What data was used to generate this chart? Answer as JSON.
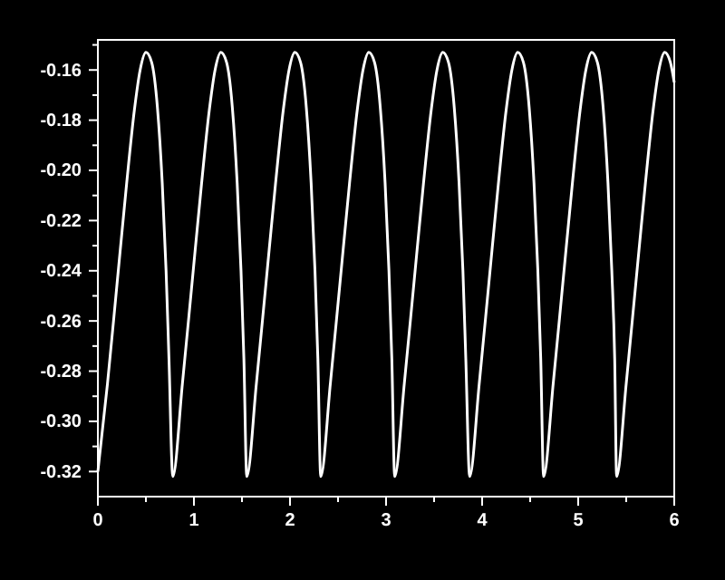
{
  "chart_data": {
    "type": "line",
    "x": [
      0,
      0.1,
      0.2,
      0.3,
      0.38,
      0.44,
      0.5,
      0.56,
      0.62,
      0.67,
      0.71,
      0.74,
      0.78,
      0.88,
      0.98,
      1.08,
      1.16,
      1.22,
      1.28,
      1.34,
      1.4,
      1.45,
      1.49,
      1.52,
      1.55,
      1.65,
      1.75,
      1.85,
      1.93,
      1.99,
      2.05,
      2.11,
      2.17,
      2.22,
      2.26,
      2.29,
      2.32,
      2.42,
      2.52,
      2.62,
      2.7,
      2.76,
      2.82,
      2.88,
      2.94,
      2.99,
      3.03,
      3.06,
      3.09,
      3.19,
      3.29,
      3.39,
      3.47,
      3.53,
      3.59,
      3.65,
      3.71,
      3.76,
      3.8,
      3.83,
      3.87,
      3.97,
      4.07,
      4.17,
      4.25,
      4.31,
      4.37,
      4.43,
      4.49,
      4.54,
      4.58,
      4.61,
      4.64,
      4.74,
      4.84,
      4.94,
      5.02,
      5.08,
      5.14,
      5.2,
      5.26,
      5.31,
      5.35,
      5.38,
      5.4,
      5.5,
      5.6,
      5.7,
      5.78,
      5.84,
      5.9,
      5.96,
      6.0
    ],
    "series": [
      {
        "color": "#ffffff",
        "values": [
          -0.32,
          -0.285,
          -0.245,
          -0.205,
          -0.176,
          -0.16,
          -0.153,
          -0.157,
          -0.175,
          -0.205,
          -0.24,
          -0.275,
          -0.322,
          -0.285,
          -0.245,
          -0.205,
          -0.176,
          -0.16,
          -0.153,
          -0.157,
          -0.175,
          -0.205,
          -0.24,
          -0.275,
          -0.322,
          -0.285,
          -0.245,
          -0.205,
          -0.176,
          -0.16,
          -0.153,
          -0.157,
          -0.175,
          -0.205,
          -0.24,
          -0.275,
          -0.322,
          -0.285,
          -0.245,
          -0.205,
          -0.176,
          -0.16,
          -0.153,
          -0.157,
          -0.175,
          -0.205,
          -0.24,
          -0.275,
          -0.322,
          -0.285,
          -0.245,
          -0.205,
          -0.176,
          -0.16,
          -0.153,
          -0.157,
          -0.175,
          -0.205,
          -0.24,
          -0.275,
          -0.322,
          -0.285,
          -0.245,
          -0.205,
          -0.176,
          -0.16,
          -0.153,
          -0.157,
          -0.175,
          -0.205,
          -0.24,
          -0.275,
          -0.322,
          -0.285,
          -0.245,
          -0.205,
          -0.176,
          -0.16,
          -0.153,
          -0.157,
          -0.175,
          -0.205,
          -0.24,
          -0.275,
          -0.322,
          -0.285,
          -0.245,
          -0.205,
          -0.176,
          -0.16,
          -0.153,
          -0.157,
          -0.165
        ]
      }
    ],
    "xlim": [
      0,
      6
    ],
    "ylim": [
      -0.33,
      -0.148
    ],
    "xticks": [
      0,
      {
        "value": 0.5,
        "label": null
      },
      1,
      {
        "value": 1.5,
        "label": null
      },
      2,
      {
        "value": 2.5,
        "label": null
      },
      3,
      {
        "value": 3.5,
        "label": null
      },
      4,
      {
        "value": 4.5,
        "label": null
      },
      5,
      {
        "value": 5.5,
        "label": null
      },
      6
    ],
    "yticks": [
      {
        "value": -0.32,
        "label": "-0.32"
      },
      {
        "value": -0.31,
        "label": null
      },
      {
        "value": -0.3,
        "label": "-0.30"
      },
      {
        "value": -0.29,
        "label": null
      },
      {
        "value": -0.28,
        "label": "-0.28"
      },
      {
        "value": -0.27,
        "label": null
      },
      {
        "value": -0.26,
        "label": "-0.26"
      },
      {
        "value": -0.25,
        "label": null
      },
      {
        "value": -0.24,
        "label": "-0.24"
      },
      {
        "value": -0.23,
        "label": null
      },
      {
        "value": -0.22,
        "label": "-0.22"
      },
      {
        "value": -0.21,
        "label": null
      },
      {
        "value": -0.2,
        "label": "-0.20"
      },
      {
        "value": -0.19,
        "label": null
      },
      {
        "value": -0.18,
        "label": "-0.18"
      },
      {
        "value": -0.17,
        "label": null
      },
      {
        "value": -0.16,
        "label": "-0.16"
      },
      {
        "value": -0.15,
        "label": null
      }
    ],
    "grid": false,
    "marker": "none",
    "line_style": "solid"
  }
}
